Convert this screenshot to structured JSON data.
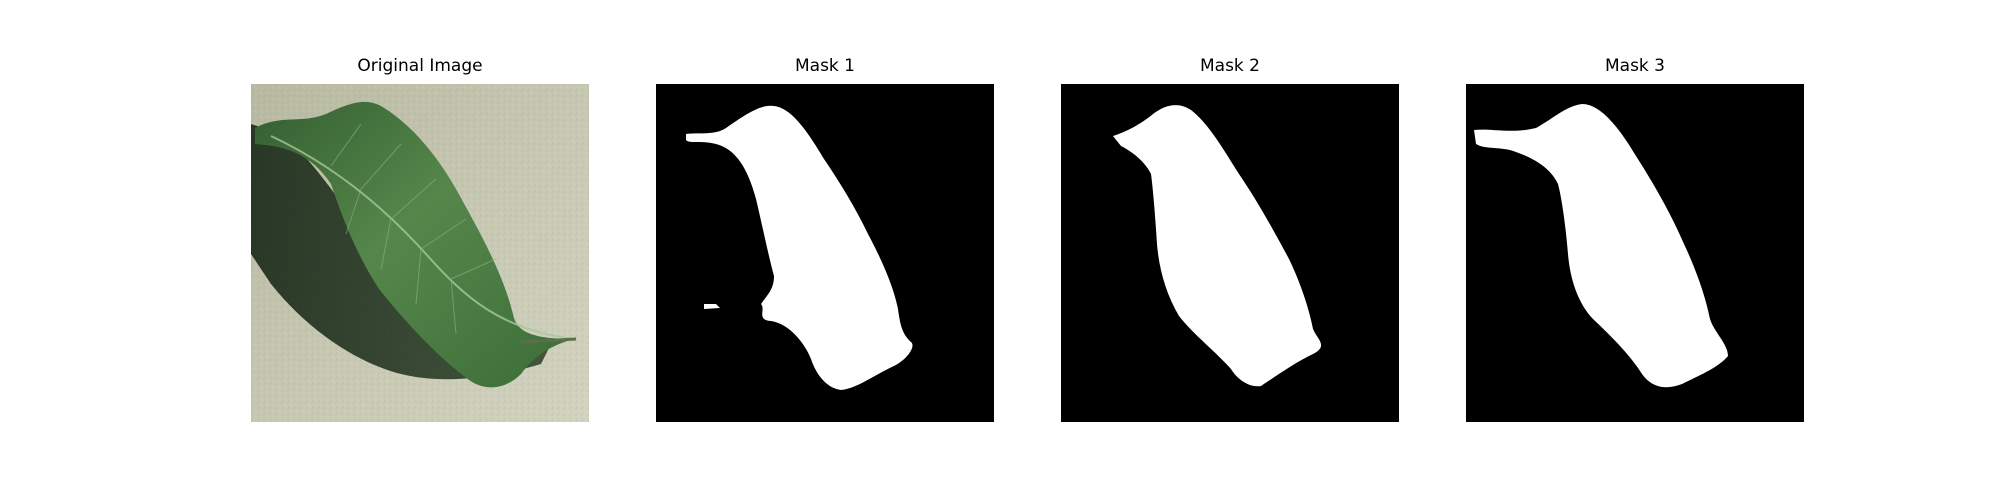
{
  "panels": [
    {
      "title": "Original Image"
    },
    {
      "title": "Mask 1"
    },
    {
      "title": "Mask 2"
    },
    {
      "title": "Mask 3"
    }
  ],
  "colors": {
    "background_paper": "#c4c5ae",
    "leaf_dark": "#2f5a2c",
    "leaf_light": "#4f8346",
    "shadow": "#1b2c18",
    "mask_fg": "#ffffff",
    "mask_bg": "#000000"
  }
}
